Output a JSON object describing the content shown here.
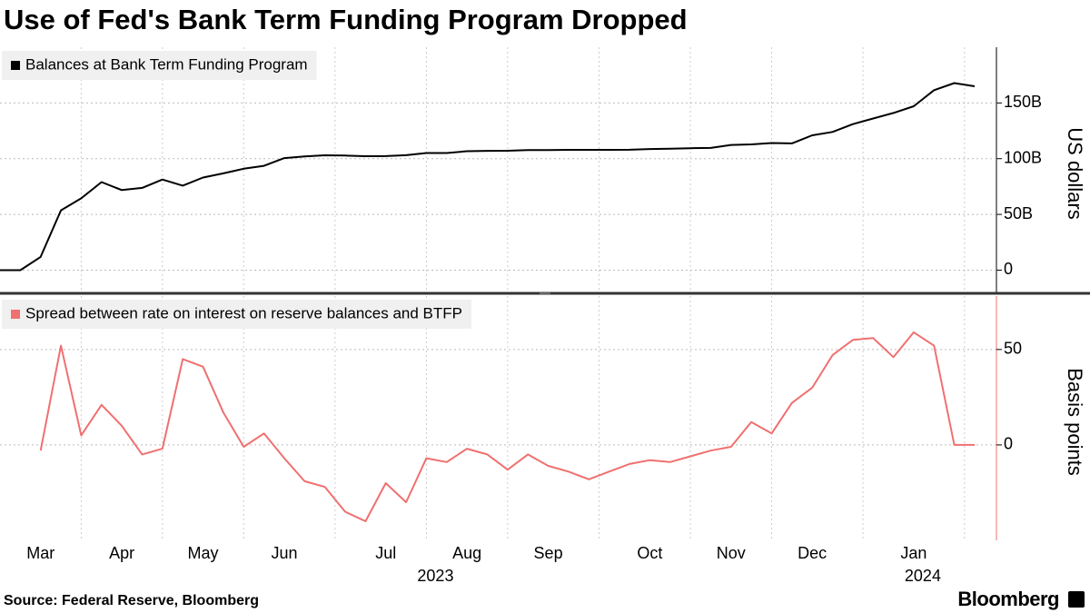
{
  "title": "Use of Fed's Bank Term Funding Program Dropped",
  "source": "Source: Federal Reserve, Bloomberg",
  "brand": "Bloomberg",
  "chart_data": [
    {
      "type": "line",
      "legend": "Balances at Bank Term Funding Program",
      "color": "#000000",
      "axis_label": "US dollars",
      "values": [
        0,
        0,
        11.9,
        53.7,
        64.4,
        79.0,
        71.8,
        73.8,
        81.3,
        75.8,
        83.1,
        86.8,
        91.0,
        93.6,
        100.5,
        102.0,
        103.0,
        102.8,
        102.2,
        102.3,
        103.1,
        105.1,
        105.1,
        106.7,
        107.0,
        107.1,
        107.7,
        107.8,
        107.9,
        107.9,
        107.9,
        108.0,
        108.7,
        108.9,
        109.4,
        109.6,
        112.3,
        112.8,
        114.0,
        113.7,
        121.0,
        124.0,
        131.0,
        136.0,
        141.0,
        147.0,
        161.5,
        167.8,
        165.0
      ],
      "ylim": [
        -20,
        200
      ],
      "yticks": [
        0,
        {
          "value": 50,
          "label": "50B"
        },
        {
          "value": 100,
          "label": "100B"
        },
        {
          "value": 150,
          "label": "150B"
        }
      ],
      "grid": true
    },
    {
      "type": "line",
      "legend": "Spread between rate on interest on reserve balances and BTFP",
      "color": "#f07070",
      "axis_label": "Basis points",
      "categories": [
        null,
        null,
        "Mar",
        null,
        null,
        null,
        "Apr",
        null,
        null,
        null,
        "May",
        null,
        null,
        null,
        "Jun",
        null,
        null,
        null,
        null,
        "Jul",
        null,
        null,
        null,
        "Aug",
        null,
        null,
        null,
        "Sep",
        null,
        null,
        null,
        null,
        "Oct",
        null,
        null,
        null,
        "Nov",
        null,
        null,
        null,
        "Dec",
        null,
        null,
        null,
        null,
        "Jan",
        null,
        null,
        null
      ],
      "year_labels": [
        null,
        null,
        null,
        null,
        null,
        null,
        null,
        null,
        null,
        null,
        null,
        null,
        null,
        null,
        null,
        null,
        null,
        null,
        null,
        null,
        null,
        "2023",
        null,
        null,
        null,
        null,
        null,
        null,
        null,
        null,
        null,
        null,
        null,
        null,
        null,
        null,
        null,
        null,
        null,
        null,
        null,
        null,
        null,
        null,
        null,
        "2024",
        null,
        null,
        null
      ],
      "values": [
        null,
        null,
        -3,
        52,
        5,
        21,
        10,
        -5,
        -2,
        45,
        41,
        17,
        -1,
        6,
        -7,
        -19,
        -22,
        -35,
        -40,
        -20,
        -30,
        -7,
        -9,
        -2,
        -5,
        -13,
        -5,
        -11,
        -14,
        -18,
        -14,
        -10,
        -8,
        -9,
        -6,
        -3,
        -1,
        12,
        6,
        22,
        30,
        47,
        55,
        56,
        46,
        59,
        52,
        0,
        0
      ],
      "ylim": [
        -50,
        78
      ],
      "yticks": [
        0,
        50
      ],
      "grid": true
    }
  ]
}
